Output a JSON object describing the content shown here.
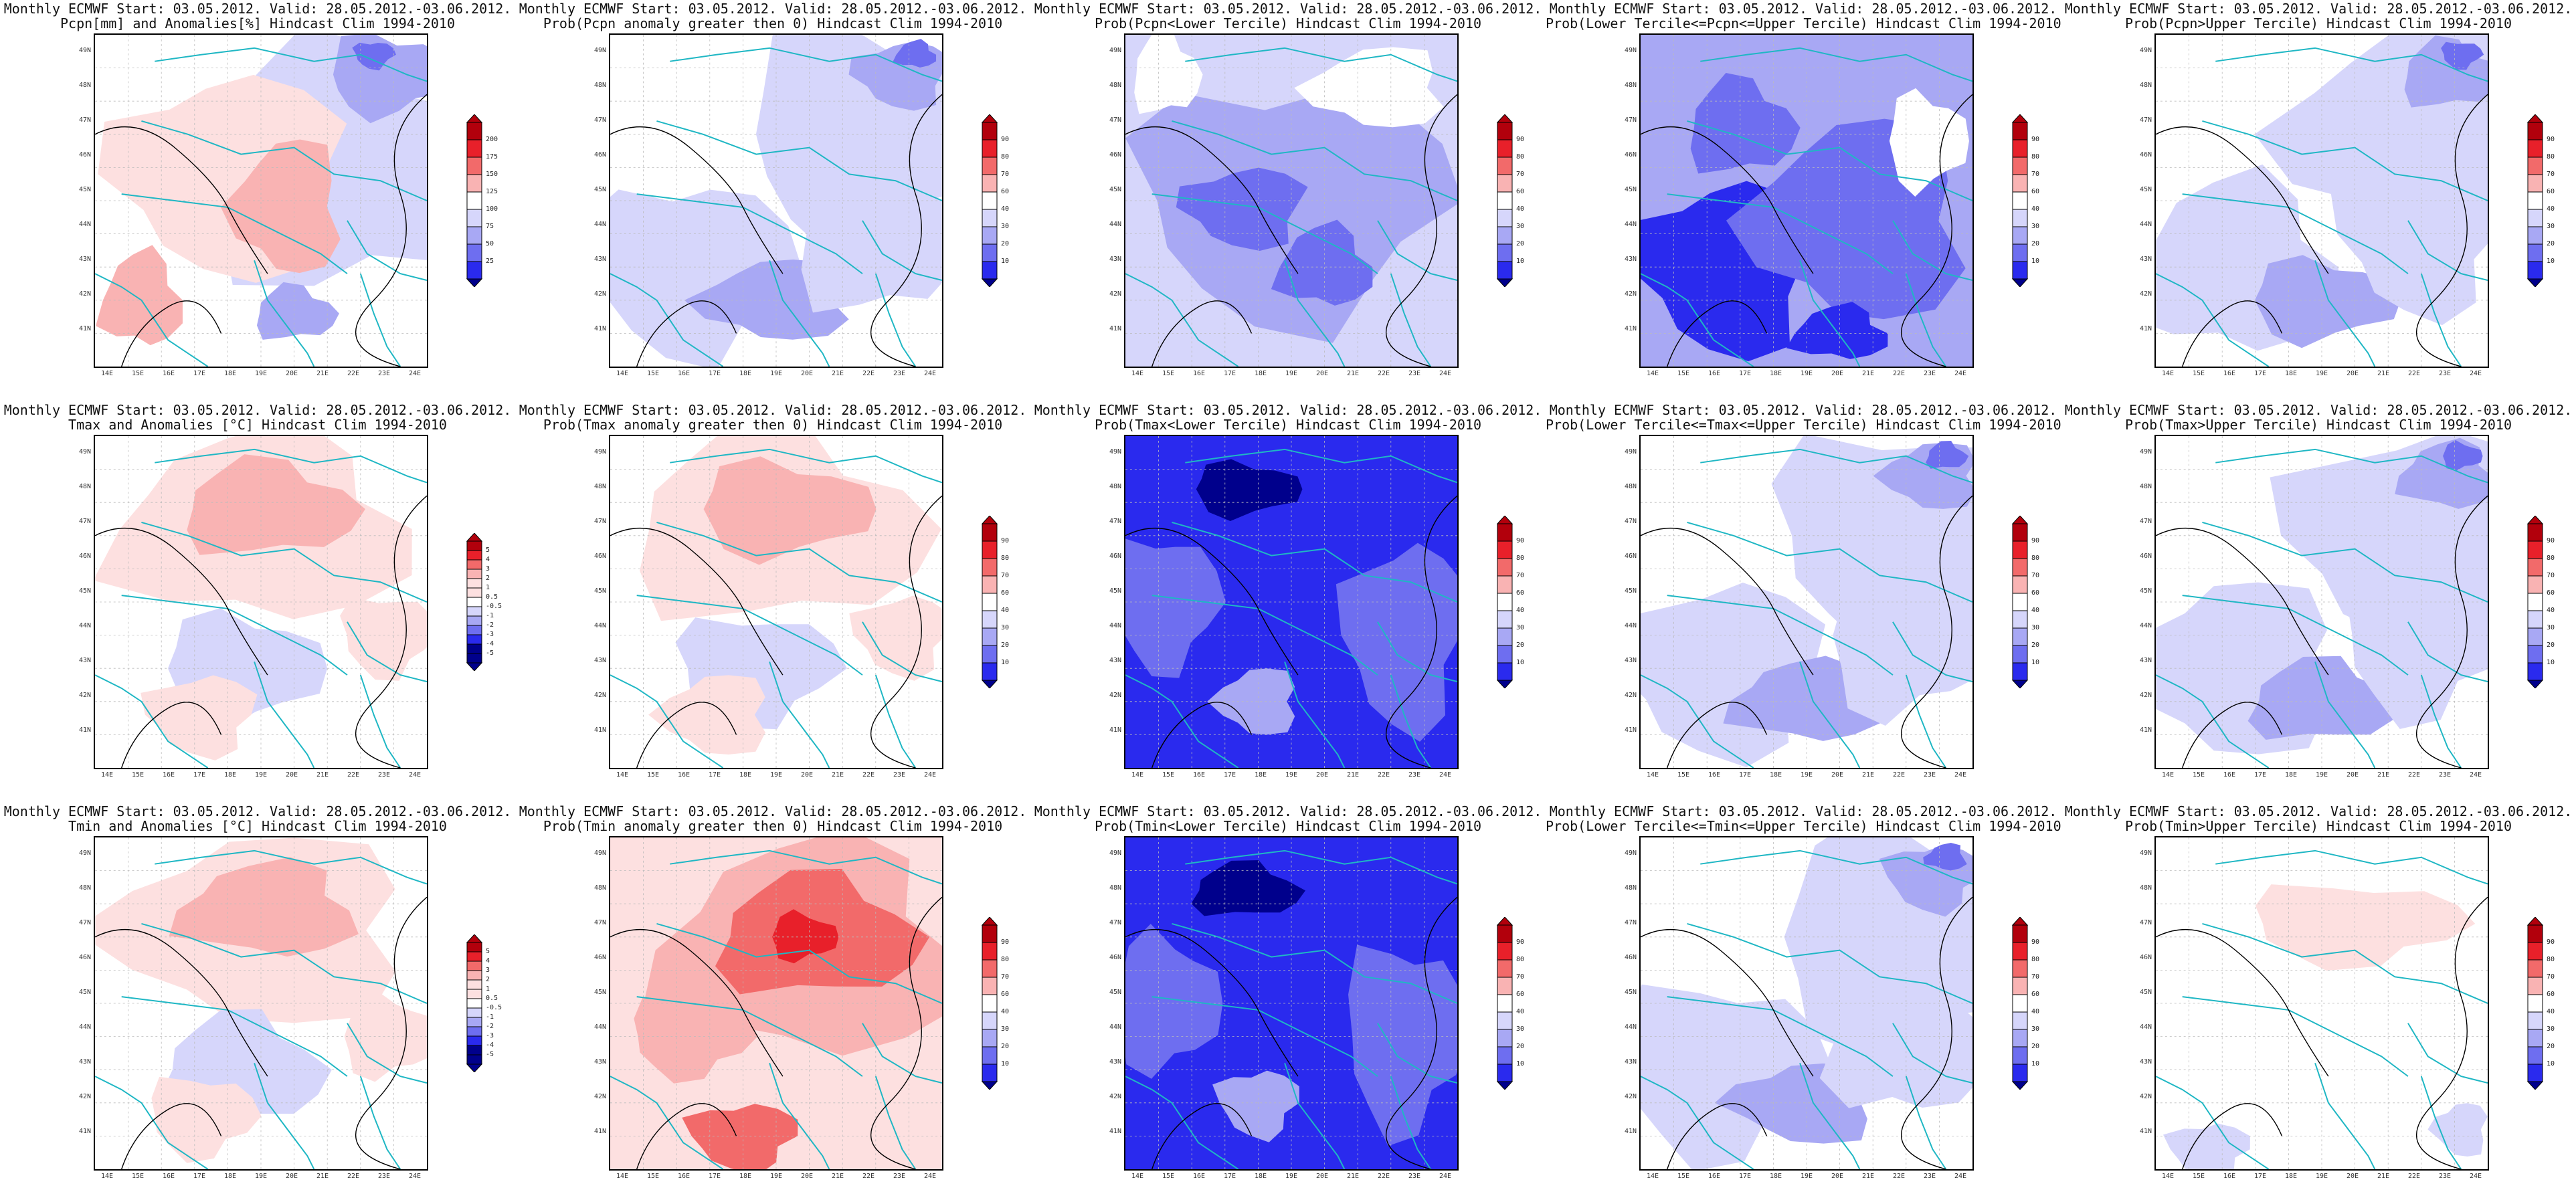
{
  "lat_labels": [
    "49N",
    "48N",
    "47N",
    "46N",
    "45N",
    "44N",
    "43N",
    "42N",
    "41N"
  ],
  "lon_labels": [
    "14E",
    "15E",
    "16E",
    "17E",
    "18E",
    "19E",
    "20E",
    "21E",
    "22E",
    "23E",
    "24E"
  ],
  "colors": {
    "red_dark": "#b2000c",
    "red": "#e8202a",
    "red_mid": "#f26a6a",
    "red_light": "#f9b3b3",
    "red_pale": "#fde0e0",
    "white": "#ffffff",
    "blue_pale": "#d6d6fb",
    "blue_light": "#a8a8f4",
    "blue_mid": "#6e6ef0",
    "blue": "#2a2aee",
    "blue_dark": "#00008c",
    "coast": "#1fb7c4",
    "contour": "#000000"
  },
  "scales": {
    "pcpn": [
      "200",
      "175",
      "150",
      "125",
      "100",
      "75",
      "50",
      "25"
    ],
    "prob": [
      "90",
      "80",
      "70",
      "60",
      "40",
      "30",
      "20",
      "10"
    ],
    "anom": [
      "5",
      "4",
      "3",
      "2",
      "1",
      "0.5",
      "-0.5",
      "-1",
      "-2",
      "-3",
      "-4",
      "-5"
    ]
  },
  "panels": [
    {
      "title1": "Monthly ECMWF Start: 03.05.2012. Valid: 28.05.2012.-03.06.2012.",
      "title2": "Pcpn[mm] and Anomalies[%] Hindcast Clim 1994-2010",
      "scale": "pcpn",
      "fill": "mixed_rb"
    },
    {
      "title1": "Monthly ECMWF Start: 03.05.2012. Valid: 28.05.2012.-03.06.2012.",
      "title2": "Prob(Pcpn anomaly greater then 0) Hindcast Clim 1994-2010",
      "scale": "prob",
      "fill": "light_blue"
    },
    {
      "title1": "Monthly ECMWF Start: 03.05.2012. Valid: 28.05.2012.-03.06.2012.",
      "title2": "Prob(Pcpn<Lower Tercile) Hindcast Clim 1994-2010",
      "scale": "prob",
      "fill": "mid_blue"
    },
    {
      "title1": "Monthly ECMWF Start: 03.05.2012. Valid: 28.05.2012.-03.06.2012.",
      "title2": "Prob(Lower Tercile<=Pcpn<=Upper Tercile) Hindcast Clim 1994-2010",
      "scale": "prob",
      "fill": "strong_blue"
    },
    {
      "title1": "Monthly ECMWF Start: 03.05.2012. Valid: 28.05.2012.-03.06.2012.",
      "title2": "Prob(Pcpn>Upper Tercile) Hindcast Clim 1994-2010",
      "scale": "prob",
      "fill": "light_blue"
    },
    {
      "title1": "Monthly ECMWF Start: 03.05.2012. Valid: 28.05.2012.-03.06.2012.",
      "title2": "Tmax and Anomalies [°C] Hindcast Clim 1994-2010",
      "scale": "anom",
      "fill": "red_light"
    },
    {
      "title1": "Monthly ECMWF Start: 03.05.2012. Valid: 28.05.2012.-03.06.2012.",
      "title2": "Prob(Tmax anomaly greater then 0) Hindcast Clim 1994-2010",
      "scale": "prob",
      "fill": "red_light"
    },
    {
      "title1": "Monthly ECMWF Start: 03.05.2012. Valid: 28.05.2012.-03.06.2012.",
      "title2": "Prob(Tmax<Lower Tercile) Hindcast Clim 1994-2010",
      "scale": "prob",
      "fill": "deep_blue"
    },
    {
      "title1": "Monthly ECMWF Start: 03.05.2012. Valid: 28.05.2012.-03.06.2012.",
      "title2": "Prob(Lower Tercile<=Tmax<=Upper Tercile) Hindcast Clim 1994-2010",
      "scale": "prob",
      "fill": "light_blue"
    },
    {
      "title1": "Monthly ECMWF Start: 03.05.2012. Valid: 28.05.2012.-03.06.2012.",
      "title2": "Prob(Tmax>Upper Tercile) Hindcast Clim 1994-2010",
      "scale": "prob",
      "fill": "light_blue"
    },
    {
      "title1": "Monthly ECMWF Start: 03.05.2012. Valid: 28.05.2012.-03.06.2012.",
      "title2": "Tmin and Anomalies [°C] Hindcast Clim 1994-2010",
      "scale": "anom",
      "fill": "red_light"
    },
    {
      "title1": "Monthly ECMWF Start: 03.05.2012. Valid: 28.05.2012.-03.06.2012.",
      "title2": "Prob(Tmin anomaly greater then 0) Hindcast Clim 1994-2010",
      "scale": "prob",
      "fill": "red_strong"
    },
    {
      "title1": "Monthly ECMWF Start: 03.05.2012. Valid: 28.05.2012.-03.06.2012.",
      "title2": "Prob(Tmin<Lower Tercile) Hindcast Clim 1994-2010",
      "scale": "prob",
      "fill": "deep_blue"
    },
    {
      "title1": "Monthly ECMWF Start: 03.05.2012. Valid: 28.05.2012.-03.06.2012.",
      "title2": "Prob(Lower Tercile<=Tmin<=Upper Tercile) Hindcast Clim 1994-2010",
      "scale": "prob",
      "fill": "light_blue"
    },
    {
      "title1": "Monthly ECMWF Start: 03.05.2012. Valid: 28.05.2012.-03.06.2012.",
      "title2": "Prob(Tmin>Upper Tercile) Hindcast Clim 1994-2010",
      "scale": "prob",
      "fill": "faint_red"
    }
  ]
}
